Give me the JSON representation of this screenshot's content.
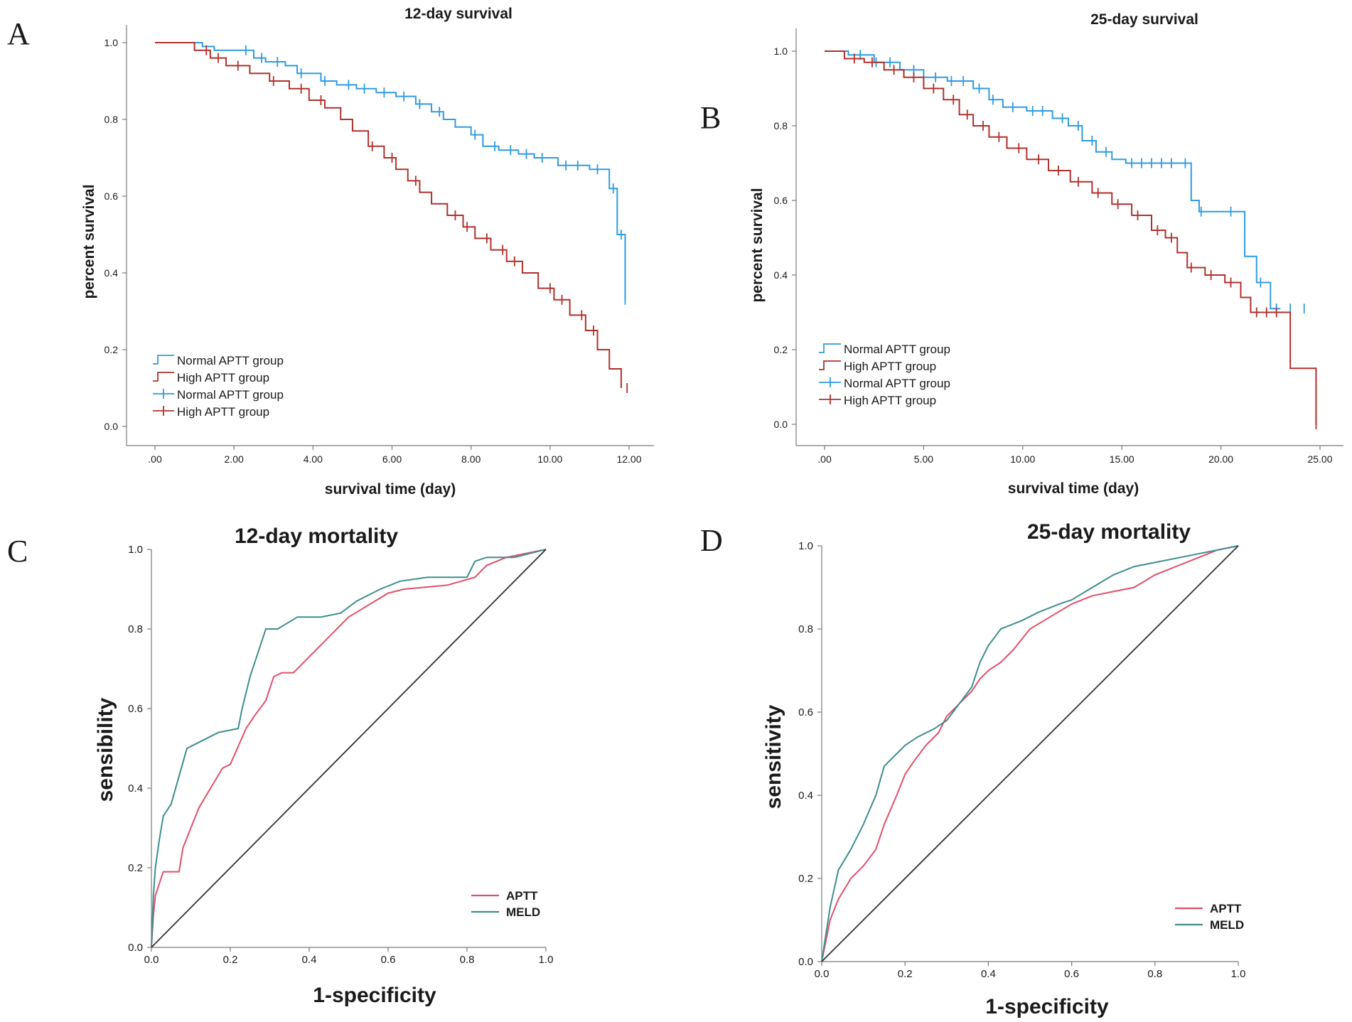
{
  "chart_data": [
    {
      "type": "line",
      "subtype": "kaplan-meier",
      "panel": "A",
      "title": "12-day survival",
      "xlabel": "survival time (day)",
      "ylabel": "percent survival",
      "xlim": [
        0,
        12
      ],
      "ylim": [
        0,
        1
      ],
      "xticks": [
        ".00",
        "2.00",
        "4.00",
        "6.00",
        "8.00",
        "10.00",
        "12.00"
      ],
      "yticks": [
        "0.0",
        "0.2",
        "0.4",
        "0.6",
        "0.8",
        "1.0"
      ],
      "legend": [
        "Normal APTT group",
        "High APTT group",
        "Normal APTT group",
        "High APTT group"
      ],
      "legend_position": "bottom-left",
      "series": [
        {
          "name": "Normal APTT group",
          "color": "#2f9be0",
          "x": [
            0,
            1.2,
            1.5,
            2.5,
            2.8,
            3.3,
            3.6,
            4.2,
            4.6,
            5.1,
            5.6,
            6.1,
            6.6,
            7.0,
            7.3,
            7.6,
            8.0,
            8.3,
            8.7,
            9.2,
            9.6,
            10.2,
            11.0,
            11.5,
            11.7,
            11.9
          ],
          "y": [
            1.0,
            0.99,
            0.98,
            0.96,
            0.95,
            0.94,
            0.92,
            0.9,
            0.89,
            0.88,
            0.87,
            0.86,
            0.84,
            0.82,
            0.8,
            0.78,
            0.76,
            0.73,
            0.72,
            0.71,
            0.7,
            0.68,
            0.67,
            0.62,
            0.5,
            0.33
          ],
          "censored_x": [
            2.3,
            2.7,
            3.1,
            3.7,
            4.3,
            4.9,
            5.3,
            5.8,
            6.3,
            6.7,
            7.2,
            8.1,
            8.6,
            9.0,
            9.4,
            9.8,
            10.4,
            10.7,
            11.2,
            11.6,
            11.8,
            11.9
          ]
        },
        {
          "name": "High APTT group",
          "color": "#b0302c",
          "x": [
            0,
            1.0,
            1.4,
            1.8,
            2.4,
            2.9,
            3.4,
            3.9,
            4.3,
            4.7,
            5.0,
            5.4,
            5.8,
            6.1,
            6.4,
            6.7,
            7.0,
            7.4,
            7.8,
            8.1,
            8.5,
            8.9,
            9.3,
            9.7,
            10.1,
            10.5,
            10.9,
            11.2,
            11.5,
            11.8
          ],
          "y": [
            1.0,
            0.98,
            0.96,
            0.94,
            0.92,
            0.9,
            0.88,
            0.85,
            0.83,
            0.8,
            0.77,
            0.73,
            0.7,
            0.67,
            0.64,
            0.61,
            0.58,
            0.55,
            0.52,
            0.49,
            0.46,
            0.43,
            0.4,
            0.36,
            0.33,
            0.29,
            0.25,
            0.2,
            0.15,
            0.1
          ],
          "censored_x": [
            1.3,
            1.6,
            2.1,
            3.0,
            3.7,
            4.2,
            5.5,
            6.0,
            6.6,
            7.6,
            7.9,
            8.4,
            8.8,
            9.1,
            10.0,
            10.3,
            10.8,
            11.1,
            11.95
          ]
        }
      ]
    },
    {
      "type": "line",
      "subtype": "kaplan-meier",
      "panel": "B",
      "title": "25-day survival",
      "xlabel": "survival time (day)",
      "ylabel": "percent survival",
      "xlim": [
        0,
        25
      ],
      "ylim": [
        0,
        1
      ],
      "xticks": [
        ".00",
        "5.00",
        "10.00",
        "15.00",
        "20.00",
        "25.00"
      ],
      "yticks": [
        "0.0",
        "0.2",
        "0.4",
        "0.6",
        "0.8",
        "1.0"
      ],
      "legend": [
        "Normal APTT group",
        "High APTT group",
        "Normal APTT group",
        "High APTT group"
      ],
      "legend_position": "bottom-left",
      "series": [
        {
          "name": "Normal APTT group",
          "color": "#2f9be0",
          "x": [
            0,
            1.2,
            2.5,
            3.8,
            5.0,
            6.2,
            7.5,
            8.3,
            9.0,
            10.2,
            11.5,
            12.3,
            13.0,
            13.7,
            14.5,
            15.2,
            18.5,
            18.9,
            19.5,
            21.2,
            21.8,
            22.5,
            23.0
          ],
          "y": [
            1.0,
            0.99,
            0.97,
            0.95,
            0.93,
            0.92,
            0.9,
            0.87,
            0.85,
            0.84,
            0.82,
            0.8,
            0.76,
            0.73,
            0.71,
            0.7,
            0.6,
            0.57,
            0.57,
            0.45,
            0.38,
            0.31,
            0.31
          ],
          "censored_x": [
            1.8,
            2.6,
            3.3,
            4.5,
            5.6,
            6.4,
            7.0,
            7.8,
            8.5,
            9.5,
            10.5,
            11.0,
            12.0,
            12.8,
            13.5,
            14.2,
            15.5,
            16.0,
            16.5,
            17.0,
            17.5,
            18.2,
            19.0,
            20.5,
            22.0,
            22.8,
            23.5,
            24.2
          ]
        },
        {
          "name": "High APTT group",
          "color": "#b0302c",
          "x": [
            0,
            1.0,
            2.0,
            3.0,
            4.0,
            5.0,
            6.0,
            6.8,
            7.5,
            8.3,
            9.2,
            10.2,
            11.3,
            12.4,
            13.5,
            14.5,
            15.5,
            16.5,
            17.2,
            17.8,
            18.3,
            19.2,
            20.2,
            21.0,
            21.5,
            23.0,
            23.5,
            24.8
          ],
          "y": [
            1.0,
            0.98,
            0.97,
            0.95,
            0.93,
            0.9,
            0.87,
            0.83,
            0.8,
            0.77,
            0.74,
            0.71,
            0.68,
            0.65,
            0.62,
            0.59,
            0.56,
            0.52,
            0.5,
            0.46,
            0.42,
            0.4,
            0.38,
            0.34,
            0.3,
            0.3,
            0.15,
            0.0
          ],
          "censored_x": [
            1.5,
            2.4,
            3.5,
            4.5,
            5.5,
            6.5,
            7.2,
            8.0,
            8.8,
            9.8,
            10.8,
            11.8,
            12.8,
            13.8,
            14.8,
            15.8,
            16.8,
            17.5,
            18.5,
            19.5,
            20.5,
            21.8,
            22.3,
            22.8,
            24.8
          ]
        }
      ]
    },
    {
      "type": "line",
      "subtype": "roc",
      "panel": "C",
      "title": "12-day mortality",
      "xlabel": "1-specificity",
      "ylabel": "sensibility",
      "xlim": [
        0,
        1
      ],
      "ylim": [
        0,
        1
      ],
      "xticks": [
        "0.0",
        "0.2",
        "0.4",
        "0.6",
        "0.8",
        "1.0"
      ],
      "yticks": [
        "0.0",
        "0.2",
        "0.4",
        "0.6",
        "0.8",
        "1.0"
      ],
      "legend_position": "bottom-right",
      "series": [
        {
          "name": "APTT",
          "color": "#e0506a",
          "x": [
            0,
            0.005,
            0.01,
            0.03,
            0.07,
            0.08,
            0.1,
            0.12,
            0.15,
            0.18,
            0.2,
            0.24,
            0.26,
            0.29,
            0.31,
            0.33,
            0.36,
            0.38,
            0.42,
            0.45,
            0.5,
            0.55,
            0.6,
            0.64,
            0.75,
            0.82,
            0.85,
            0.9,
            0.95,
            1.0
          ],
          "y": [
            0,
            0.08,
            0.13,
            0.19,
            0.19,
            0.25,
            0.3,
            0.35,
            0.4,
            0.45,
            0.46,
            0.55,
            0.58,
            0.62,
            0.68,
            0.69,
            0.69,
            0.71,
            0.75,
            0.78,
            0.83,
            0.86,
            0.89,
            0.9,
            0.91,
            0.93,
            0.96,
            0.98,
            0.99,
            1.0
          ]
        },
        {
          "name": "MELD",
          "color": "#3e8e8e",
          "x": [
            0,
            0.005,
            0.01,
            0.02,
            0.03,
            0.05,
            0.07,
            0.09,
            0.13,
            0.17,
            0.22,
            0.23,
            0.25,
            0.27,
            0.29,
            0.32,
            0.37,
            0.43,
            0.48,
            0.52,
            0.58,
            0.63,
            0.7,
            0.8,
            0.82,
            0.85,
            0.92,
            1.0
          ],
          "y": [
            0,
            0.13,
            0.2,
            0.27,
            0.33,
            0.36,
            0.43,
            0.5,
            0.52,
            0.54,
            0.55,
            0.6,
            0.68,
            0.74,
            0.8,
            0.8,
            0.83,
            0.83,
            0.84,
            0.87,
            0.9,
            0.92,
            0.93,
            0.93,
            0.97,
            0.98,
            0.98,
            1.0
          ]
        },
        {
          "name": "reference",
          "color": "#333333",
          "x": [
            0,
            1
          ],
          "y": [
            0,
            1
          ]
        }
      ]
    },
    {
      "type": "line",
      "subtype": "roc",
      "panel": "D",
      "title": "25-day mortality",
      "xlabel": "1-specificity",
      "ylabel": "sensitivity",
      "xlim": [
        0,
        1
      ],
      "ylim": [
        0,
        1
      ],
      "xticks": [
        "0.0",
        "0.2",
        "0.4",
        "0.6",
        "0.8",
        "1.0"
      ],
      "yticks": [
        "0.0",
        "0.2",
        "0.4",
        "0.6",
        "0.8",
        "1.0"
      ],
      "legend_position": "bottom-right",
      "series": [
        {
          "name": "APTT",
          "color": "#e0506a",
          "x": [
            0,
            0.02,
            0.04,
            0.07,
            0.1,
            0.13,
            0.15,
            0.18,
            0.2,
            0.22,
            0.25,
            0.28,
            0.3,
            0.33,
            0.36,
            0.38,
            0.4,
            0.43,
            0.46,
            0.5,
            0.55,
            0.6,
            0.65,
            0.7,
            0.75,
            0.8,
            0.85,
            0.9,
            0.95,
            1.0
          ],
          "y": [
            0,
            0.1,
            0.15,
            0.2,
            0.23,
            0.27,
            0.33,
            0.4,
            0.45,
            0.48,
            0.52,
            0.55,
            0.59,
            0.62,
            0.65,
            0.68,
            0.7,
            0.72,
            0.75,
            0.8,
            0.83,
            0.86,
            0.88,
            0.89,
            0.9,
            0.93,
            0.95,
            0.97,
            0.99,
            1.0
          ]
        },
        {
          "name": "MELD",
          "color": "#3e8e8e",
          "x": [
            0,
            0.02,
            0.04,
            0.07,
            0.1,
            0.13,
            0.15,
            0.18,
            0.2,
            0.23,
            0.27,
            0.3,
            0.33,
            0.36,
            0.38,
            0.4,
            0.43,
            0.48,
            0.52,
            0.57,
            0.6,
            0.65,
            0.7,
            0.75,
            0.8,
            0.85,
            0.9,
            0.95,
            1.0
          ],
          "y": [
            0,
            0.13,
            0.22,
            0.27,
            0.33,
            0.4,
            0.47,
            0.5,
            0.52,
            0.54,
            0.56,
            0.58,
            0.62,
            0.66,
            0.72,
            0.76,
            0.8,
            0.82,
            0.84,
            0.86,
            0.87,
            0.9,
            0.93,
            0.95,
            0.96,
            0.97,
            0.98,
            0.99,
            1.0
          ]
        },
        {
          "name": "reference",
          "color": "#333333",
          "x": [
            0,
            1
          ],
          "y": [
            0,
            1
          ]
        }
      ]
    }
  ]
}
